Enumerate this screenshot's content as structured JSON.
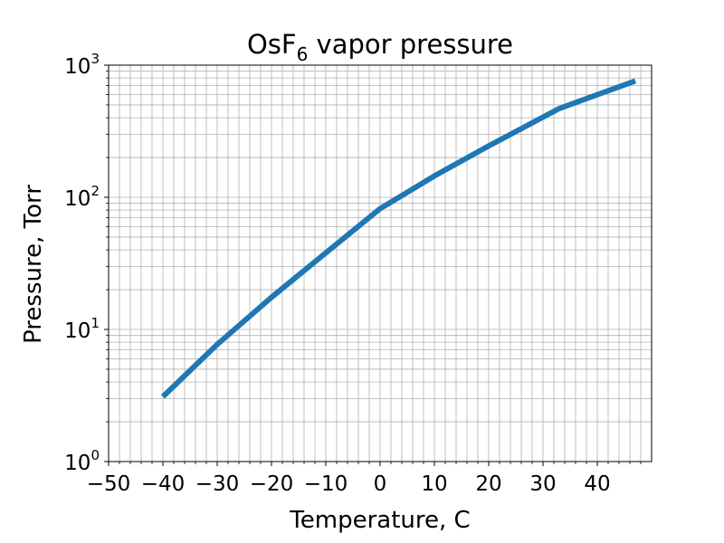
{
  "chart_data": {
    "type": "line",
    "title": {
      "main": "OsF",
      "subscript": "6",
      "rest": " vapor pressure"
    },
    "xlabel": "Temperature, C",
    "ylabel": "Pressure, Torr",
    "xlim": [
      -50,
      50
    ],
    "ylim": [
      1,
      1000
    ],
    "yscale": "log",
    "grid": "major and minor",
    "x_ticks": [
      -50,
      -40,
      -30,
      -20,
      -10,
      0,
      10,
      20,
      30,
      40
    ],
    "x_tick_labels": [
      "−50",
      "−40",
      "−30",
      "−20",
      "−10",
      "0",
      "10",
      "20",
      "30",
      "40"
    ],
    "y_ticks": [
      {
        "value": 1,
        "base": "10",
        "exp": "0"
      },
      {
        "value": 10,
        "base": "10",
        "exp": "1"
      },
      {
        "value": 100,
        "base": "10",
        "exp": "2"
      },
      {
        "value": 1000,
        "base": "10",
        "exp": "3"
      }
    ],
    "series": [
      {
        "color": "#1f77b4",
        "x": [
          -40,
          -30,
          -20,
          -10,
          0,
          10,
          20,
          33,
          47
        ],
        "y": [
          3.1,
          7.7,
          17.5,
          38,
          82,
          145,
          245,
          470,
          760
        ]
      }
    ]
  }
}
